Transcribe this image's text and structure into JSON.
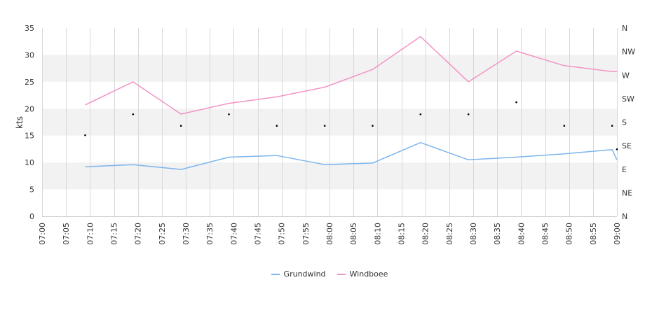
{
  "chart_data": {
    "type": "line",
    "ylabel": "kts",
    "ylim": [
      0,
      35
    ],
    "y_ticks": [
      "0",
      "5",
      "10",
      "15",
      "20",
      "25",
      "30",
      "35"
    ],
    "y2_ticks": [
      "N",
      "NE",
      "E",
      "SE",
      "S",
      "SW",
      "W",
      "NW",
      "N"
    ],
    "x_range": [
      "07:00",
      "09:00"
    ],
    "x_ticks": [
      "07:00",
      "07:05",
      "07:10",
      "07:15",
      "07:20",
      "07:25",
      "07:30",
      "07:35",
      "07:40",
      "07:45",
      "07:50",
      "07:55",
      "08:00",
      "08:05",
      "08:10",
      "08:15",
      "08:20",
      "08:25",
      "08:30",
      "08:35",
      "08:40",
      "08:45",
      "08:50",
      "08:55",
      "09:00"
    ],
    "series": [
      {
        "name": "Grundwind",
        "color": "#7cb5ec",
        "x": [
          "07:09",
          "07:19",
          "07:29",
          "07:39",
          "07:49",
          "07:59",
          "08:09",
          "08:19",
          "08:29",
          "08:39",
          "08:49",
          "08:59",
          "09:00"
        ],
        "values": [
          9.2,
          9.6,
          8.7,
          11.0,
          11.3,
          9.6,
          9.9,
          13.7,
          10.5,
          11.0,
          11.6,
          12.4,
          10.5
        ]
      },
      {
        "name": "Windboee",
        "color": "#f294c5",
        "x": [
          "07:09",
          "07:19",
          "07:29",
          "07:39",
          "07:49",
          "07:59",
          "08:09",
          "08:19",
          "08:29",
          "08:39",
          "08:49",
          "08:59",
          "09:00"
        ],
        "values": [
          20.7,
          25.0,
          19.0,
          21.0,
          22.2,
          24.0,
          27.3,
          33.4,
          25.0,
          30.7,
          28.0,
          26.9,
          26.9
        ]
      }
    ],
    "direction": {
      "x": [
        "07:09",
        "07:19",
        "07:29",
        "07:39",
        "07:49",
        "07:59",
        "08:09",
        "08:19",
        "08:29",
        "08:39",
        "08:49",
        "08:59",
        "09:00"
      ],
      "values": [
        155,
        195,
        173,
        195,
        173,
        173,
        173,
        195,
        195,
        218,
        173,
        173,
        128
      ]
    },
    "bands": [
      [
        5,
        10
      ],
      [
        15,
        20
      ],
      [
        25,
        30
      ]
    ],
    "grid": true,
    "legend_position": "bottom-center"
  }
}
